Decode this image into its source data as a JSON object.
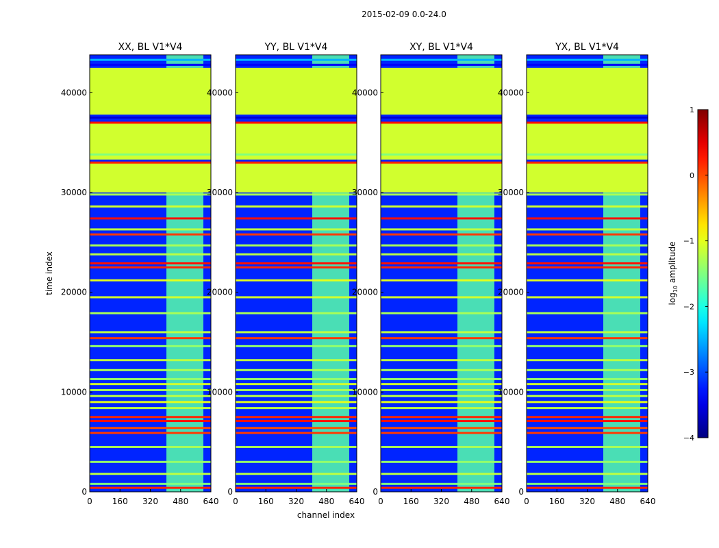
{
  "figure": {
    "suptitle": "2015-02-09 0.0-24.0"
  },
  "chart_data": {
    "type": "heatmap",
    "panels": [
      {
        "title": "XX, BL V1*V4",
        "show_ylabel": true
      },
      {
        "title": "YY, BL V1*V4",
        "show_ylabel": false
      },
      {
        "title": "XY, BL V1*V4",
        "show_ylabel": false
      },
      {
        "title": "YX, BL V1*V4",
        "show_ylabel": false
      }
    ],
    "xlabel": "channel index",
    "ylabel": "time index",
    "xlim": [
      0,
      640
    ],
    "ylim": [
      0,
      43800
    ],
    "x_ticks": [
      0,
      160,
      320,
      480,
      640
    ],
    "y_ticks": [
      0,
      10000,
      20000,
      30000,
      40000
    ],
    "colorbar": {
      "label": "log10 amplitude",
      "label_main": "log",
      "label_sub": "10",
      "label_rest": " amplitude",
      "ticks": [
        1,
        0,
        -1,
        -2,
        -3,
        -4
      ],
      "tick_labels": [
        "1",
        "0",
        "−1",
        "−2",
        "−3",
        "−4"
      ],
      "range": [
        -4,
        1
      ],
      "colormap": "jet"
    },
    "flagged_time_ranges": [
      [
        30000,
        33000
      ],
      [
        33300,
        37000
      ],
      [
        37800,
        42500
      ]
    ],
    "flagged_value": -1.1,
    "background_value": -3.2,
    "bright_channel_range": [
      405,
      600
    ],
    "horizontal_lines": [
      {
        "y": 400,
        "value": 0.2
      },
      {
        "y": 800,
        "value": -1.5
      },
      {
        "y": 1800,
        "value": -1.2
      },
      {
        "y": 3000,
        "value": -1.4
      },
      {
        "y": 4500,
        "value": -1.3
      },
      {
        "y": 5900,
        "value": 0.1
      },
      {
        "y": 6400,
        "value": 0.0
      },
      {
        "y": 7100,
        "value": 0.3
      },
      {
        "y": 7500,
        "value": 0.2
      },
      {
        "y": 8400,
        "value": -1.2
      },
      {
        "y": 9000,
        "value": -1.0
      },
      {
        "y": 9600,
        "value": -1.2
      },
      {
        "y": 10200,
        "value": -1.3
      },
      {
        "y": 10800,
        "value": -1.1
      },
      {
        "y": 11300,
        "value": -1.4
      },
      {
        "y": 12200,
        "value": -1.3
      },
      {
        "y": 13200,
        "value": -1.2
      },
      {
        "y": 14600,
        "value": -1.4
      },
      {
        "y": 15400,
        "value": 0.1
      },
      {
        "y": 16000,
        "value": -1.2
      },
      {
        "y": 17900,
        "value": -1.3
      },
      {
        "y": 19500,
        "value": -1.1
      },
      {
        "y": 21200,
        "value": -1.0
      },
      {
        "y": 22500,
        "value": 0.2
      },
      {
        "y": 22900,
        "value": 0.3
      },
      {
        "y": 23800,
        "value": -1.2
      },
      {
        "y": 24700,
        "value": -1.3
      },
      {
        "y": 25800,
        "value": 0.1
      },
      {
        "y": 26300,
        "value": -1.2
      },
      {
        "y": 27400,
        "value": 0.3
      },
      {
        "y": 28600,
        "value": -1.1
      },
      {
        "y": 29800,
        "value": -1.3
      },
      {
        "y": 33000,
        "value": 0.2
      },
      {
        "y": 33800,
        "value": -1.5
      },
      {
        "y": 37000,
        "value": 0.3
      },
      {
        "y": 37500,
        "value": -3.6
      },
      {
        "y": 42800,
        "value": -3.4
      },
      {
        "y": 43300,
        "value": -2.5
      }
    ]
  }
}
